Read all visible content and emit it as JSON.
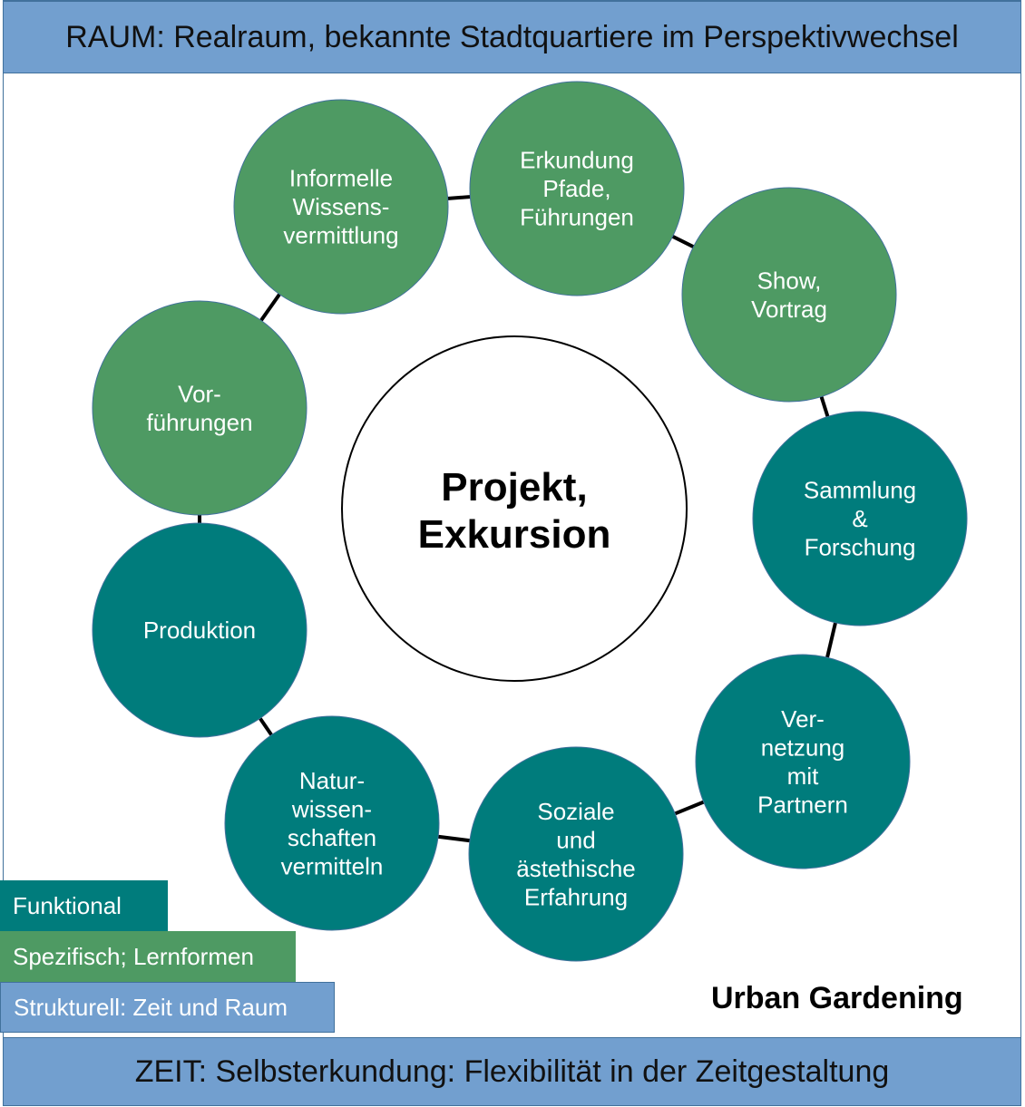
{
  "header": {
    "raum": "RAUM: Realraum, bekannte Stadtquartiere im Perspektivwechsel"
  },
  "footer": {
    "zeit": "ZEIT: Selbsterkundung: Flexibilität in der Zeitgestaltung"
  },
  "center": {
    "lines": [
      "Projekt,",
      "Exkursion"
    ]
  },
  "colors": {
    "green": "#4e9a63",
    "teal": "#007c7c",
    "blue": "#729fcf",
    "border": "#41719c"
  },
  "nodes": [
    {
      "lines": [
        "Informelle",
        "Wissens-",
        "vermittlung"
      ],
      "category": "green"
    },
    {
      "lines": [
        "Erkundung",
        "Pfade,",
        "Führungen"
      ],
      "category": "green"
    },
    {
      "lines": [
        "Show,",
        "Vortrag"
      ],
      "category": "green"
    },
    {
      "lines": [
        "Sammlung",
        "&",
        "Forschung"
      ],
      "category": "teal"
    },
    {
      "lines": [
        "Ver-",
        "netzung",
        "mit",
        "Partnern"
      ],
      "category": "teal"
    },
    {
      "lines": [
        "Soziale",
        "und",
        "ästethische",
        "Erfahrung"
      ],
      "category": "teal"
    },
    {
      "lines": [
        "Natur-",
        "wissen-",
        "schaften",
        "vermitteln"
      ],
      "category": "teal"
    },
    {
      "lines": [
        "Produktion"
      ],
      "category": "teal"
    },
    {
      "lines": [
        "Vor-",
        "führungen"
      ],
      "category": "green"
    }
  ],
  "legend": {
    "funktional": "Funktional",
    "spezifisch": "Spezifisch; Lernformen",
    "strukturell": "Strukturell: Zeit und Raum"
  },
  "caption": "Urban Gardening"
}
